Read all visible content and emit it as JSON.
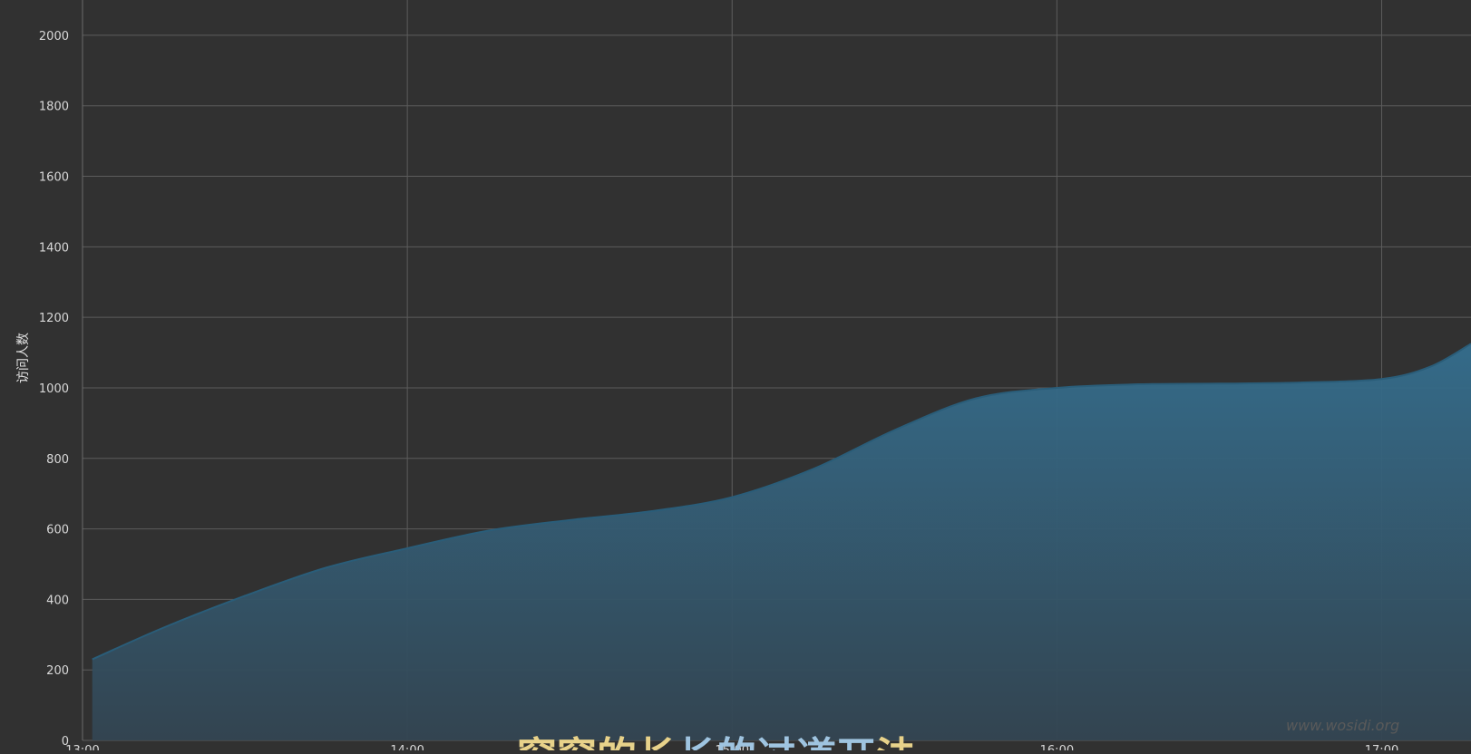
{
  "chart_data": {
    "type": "area",
    "ylabel": "访问人数",
    "xlabel": "",
    "ylim": [
      0,
      2100
    ],
    "y_ticks": [
      0,
      200,
      400,
      600,
      800,
      1000,
      1200,
      1400,
      1600,
      1800,
      2000
    ],
    "x_range_hours": [
      13.0,
      17.275
    ],
    "x_ticks": [
      {
        "value": 13,
        "label": "13:00"
      },
      {
        "value": 14,
        "label": "14:00"
      },
      {
        "value": 15,
        "label": "15:00"
      },
      {
        "value": 16,
        "label": "16:00"
      },
      {
        "value": 17,
        "label": "17:00"
      }
    ],
    "grid": true,
    "colors": {
      "background": "#313131",
      "grid": "#5c5c5c",
      "fill_top": "#346e8e",
      "fill_bottom": "#334552",
      "line": "#2a5d79"
    },
    "series": [
      {
        "points": [
          {
            "x": 13.03,
            "y": 230
          },
          {
            "x": 13.25,
            "y": 320
          },
          {
            "x": 13.5,
            "y": 410
          },
          {
            "x": 13.75,
            "y": 490
          },
          {
            "x": 14.0,
            "y": 545
          },
          {
            "x": 14.25,
            "y": 595
          },
          {
            "x": 14.5,
            "y": 625
          },
          {
            "x": 14.75,
            "y": 650
          },
          {
            "x": 15.0,
            "y": 690
          },
          {
            "x": 15.25,
            "y": 770
          },
          {
            "x": 15.5,
            "y": 880
          },
          {
            "x": 15.75,
            "y": 970
          },
          {
            "x": 16.0,
            "y": 1000
          },
          {
            "x": 16.25,
            "y": 1010
          },
          {
            "x": 16.5,
            "y": 1012
          },
          {
            "x": 16.75,
            "y": 1015
          },
          {
            "x": 17.0,
            "y": 1025
          },
          {
            "x": 17.15,
            "y": 1060
          },
          {
            "x": 17.275,
            "y": 1125
          }
        ]
      }
    ]
  },
  "caption": {
    "segments": [
      {
        "text": "窗窗",
        "color": "#e8d28a"
      },
      {
        "text": "的长",
        "color": "#e8d28a"
      },
      {
        "text": "长的过道开",
        "color": "#9fc4e0"
      },
      {
        "text": "法",
        "color": "#e8d28a"
      }
    ]
  },
  "watermark": "www.wosidi.org"
}
